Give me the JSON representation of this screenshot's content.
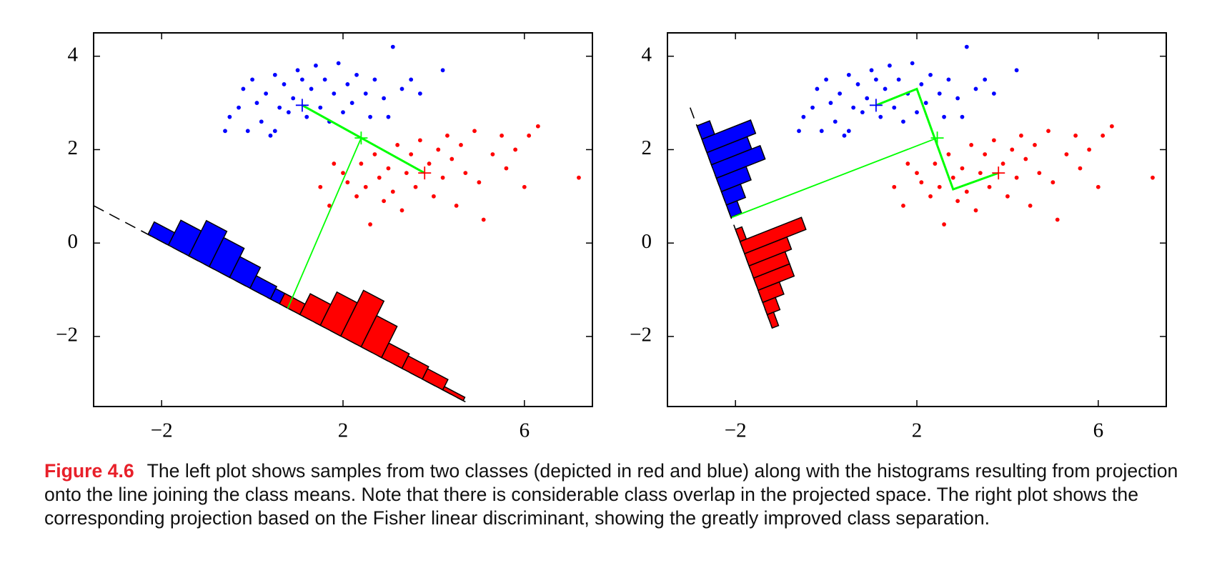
{
  "chart_data": [
    {
      "type": "scatter",
      "xlim": [
        -3.5,
        7.5
      ],
      "ylim": [
        -3.5,
        4.5
      ],
      "xticks": [
        {
          "value": -2,
          "label": "−2"
        },
        2,
        6
      ],
      "yticks": [
        {
          "value": -2,
          "label": "−2"
        },
        0,
        2,
        4
      ],
      "series": [
        {
          "color": "#0000ff",
          "x": [
            -0.5,
            -0.6,
            -0.3,
            -0.2,
            0,
            0.1,
            0.2,
            0.3,
            0.4,
            0.5,
            0.6,
            0.7,
            0.8,
            0.9,
            1.0,
            1.2,
            1.3,
            1.4,
            1.5,
            1.6,
            1.7,
            1.8,
            1.9,
            2.0,
            2.1,
            2.2,
            2.3,
            2.5,
            2.6,
            2.7,
            2.9,
            3.0,
            3.1,
            3.3,
            3.5,
            3.7,
            4.2,
            -0.1,
            0.5,
            1.1
          ],
          "y": [
            2.7,
            2.4,
            2.9,
            3.3,
            3.5,
            3.0,
            2.6,
            3.2,
            2.3,
            3.6,
            2.9,
            3.4,
            2.8,
            3.1,
            3.7,
            2.7,
            3.3,
            3.8,
            2.9,
            3.5,
            2.6,
            3.2,
            3.85,
            2.8,
            3.4,
            3.0,
            3.6,
            3.2,
            2.7,
            3.5,
            3.1,
            2.7,
            4.2,
            3.3,
            3.5,
            3.2,
            3.7,
            2.4,
            2.4,
            3.5
          ]
        },
        {
          "color": "#ff0000",
          "x": [
            1.5,
            1.7,
            1.8,
            2.0,
            2.1,
            2.3,
            2.4,
            2.5,
            2.6,
            2.7,
            2.8,
            2.9,
            3.0,
            3.1,
            3.2,
            3.3,
            3.4,
            3.5,
            3.6,
            3.7,
            3.9,
            4.0,
            4.1,
            4.2,
            4.3,
            4.4,
            4.5,
            4.6,
            4.7,
            4.9,
            5.0,
            5.1,
            5.3,
            5.5,
            5.6,
            5.8,
            6.0,
            6.1,
            6.3,
            7.2
          ],
          "y": [
            1.2,
            0.8,
            1.7,
            1.5,
            1.3,
            1.0,
            1.7,
            1.2,
            0.4,
            1.9,
            1.4,
            0.9,
            1.6,
            1.1,
            2.1,
            0.7,
            1.5,
            1.9,
            1.2,
            2.2,
            1.7,
            1.0,
            2.0,
            1.4,
            2.3,
            1.8,
            0.8,
            2.1,
            1.5,
            2.4,
            1.3,
            0.5,
            1.9,
            2.3,
            1.6,
            2.0,
            1.2,
            2.3,
            2.5,
            1.4
          ]
        }
      ],
      "projection": {
        "color": "#000000",
        "x": [
          -3.5,
          4.7
        ],
        "y": [
          0.8,
          -3.4
        ]
      },
      "histograms": [
        {
          "color": "#0000ff",
          "bins": [
            -2.3,
            -1.85,
            -1.4,
            -0.95,
            -0.5,
            -0.05,
            0.4,
            0.85,
            1.3
          ],
          "counts": [
            0.3,
            0.6,
            0.85,
            0.7,
            0.5,
            0.3,
            0.25,
            0.2
          ]
        },
        {
          "color": "#ff0000",
          "bins": [
            0.6,
            1.05,
            1.5,
            1.95,
            2.4,
            2.85,
            3.3,
            3.75,
            4.2,
            4.65
          ],
          "counts": [
            0.25,
            0.5,
            0.8,
            1.1,
            0.75,
            0.35,
            0.3,
            0.25,
            0.08
          ]
        }
      ],
      "lines": [
        {
          "color": "#00ff00",
          "x": [
            1.1,
            3.8
          ],
          "y": [
            2.95,
            1.5
          ]
        },
        {
          "color": "#00ff00",
          "x": [
            2.4,
            0.78
          ],
          "y": [
            2.25,
            -1.4
          ]
        }
      ],
      "means": {
        "colors": [
          "#0000ff",
          "#ff0000",
          "#00ff00"
        ],
        "x": [
          1.1,
          3.8,
          2.4
        ],
        "y": [
          2.95,
          1.5,
          2.25
        ]
      }
    },
    {
      "type": "scatter",
      "xlim": [
        -3.5,
        7.5
      ],
      "ylim": [
        -3.5,
        4.5
      ],
      "xticks": [
        {
          "value": -2,
          "label": "−2"
        },
        2,
        6
      ],
      "yticks": [
        {
          "value": -2,
          "label": "−2"
        },
        0,
        2,
        4
      ],
      "series": [
        {
          "color": "#0000ff",
          "x": [
            -0.5,
            -0.6,
            -0.3,
            -0.2,
            0,
            0.1,
            0.2,
            0.3,
            0.4,
            0.5,
            0.6,
            0.7,
            0.8,
            0.9,
            1.0,
            1.2,
            1.3,
            1.4,
            1.5,
            1.6,
            1.7,
            1.8,
            1.9,
            2.0,
            2.1,
            2.2,
            2.3,
            2.5,
            2.6,
            2.7,
            2.9,
            3.0,
            3.1,
            3.3,
            3.5,
            3.7,
            4.2,
            -0.1,
            0.5,
            1.1
          ],
          "y": [
            2.7,
            2.4,
            2.9,
            3.3,
            3.5,
            3.0,
            2.6,
            3.2,
            2.3,
            3.6,
            2.9,
            3.4,
            2.8,
            3.1,
            3.7,
            2.7,
            3.3,
            3.8,
            2.9,
            3.5,
            2.6,
            3.2,
            3.85,
            2.8,
            3.4,
            3.0,
            3.6,
            3.2,
            2.7,
            3.5,
            3.1,
            2.7,
            4.2,
            3.3,
            3.5,
            3.2,
            3.7,
            2.4,
            2.4,
            3.5
          ]
        },
        {
          "color": "#ff0000",
          "x": [
            1.5,
            1.7,
            1.8,
            2.0,
            2.1,
            2.3,
            2.4,
            2.5,
            2.6,
            2.7,
            2.8,
            2.9,
            3.0,
            3.1,
            3.2,
            3.3,
            3.4,
            3.5,
            3.6,
            3.7,
            3.9,
            4.0,
            4.1,
            4.2,
            4.3,
            4.4,
            4.5,
            4.6,
            4.7,
            4.9,
            5.0,
            5.1,
            5.3,
            5.5,
            5.6,
            5.8,
            6.0,
            6.1,
            6.3,
            7.2
          ],
          "y": [
            1.2,
            0.8,
            1.7,
            1.5,
            1.3,
            1.0,
            1.7,
            1.2,
            0.4,
            1.9,
            1.4,
            0.9,
            1.6,
            1.1,
            2.1,
            0.7,
            1.5,
            1.9,
            1.2,
            2.2,
            1.7,
            1.0,
            2.0,
            1.4,
            2.3,
            1.8,
            0.8,
            2.1,
            1.5,
            2.4,
            1.3,
            0.5,
            1.9,
            2.3,
            1.6,
            2.0,
            1.2,
            2.3,
            2.5,
            1.4
          ]
        }
      ],
      "projection": {
        "color": "#000000",
        "x": [
          -3.0,
          -1.19
        ],
        "y": [
          2.9,
          -1.82
        ]
      },
      "histograms": [
        {
          "color": "#0000ff",
          "bins": [
            -2.85,
            -2.74,
            -2.63,
            -2.53,
            -2.42,
            -2.31,
            -2.2,
            -2.1
          ],
          "counts": [
            0.3,
            1.15,
            0.95,
            1.15,
            0.7,
            0.45,
            0.25
          ]
        },
        {
          "color": "#ff0000",
          "bins": [
            -2.0,
            -1.9,
            -1.8,
            -1.7,
            -1.6,
            -1.5,
            -1.4,
            -1.3,
            -1.19
          ],
          "counts": [
            0.15,
            1.45,
            1.0,
            0.85,
            0.85,
            0.5,
            0.3,
            0.15
          ]
        }
      ],
      "lines": [
        {
          "color": "#00ff00",
          "x": [
            1.1,
            2.0,
            2.8,
            3.8
          ],
          "y": [
            2.95,
            3.3,
            1.15,
            1.5
          ]
        },
        {
          "color": "#00ff00",
          "x": [
            2.45,
            -2.08
          ],
          "y": [
            2.25,
            0.55
          ]
        }
      ],
      "means": {
        "colors": [
          "#0000ff",
          "#ff0000",
          "#00ff00"
        ],
        "x": [
          1.1,
          3.8,
          2.45
        ],
        "y": [
          2.95,
          1.5,
          2.25
        ]
      }
    }
  ],
  "caption": {
    "label": "Figure 4.6",
    "text": "The left plot shows samples from two classes (depicted in red and blue) along with the histograms resulting from projection onto the line joining the class means. Note that there is considerable class overlap in the projected space. The right plot shows the corresponding projection based on the Fisher linear discriminant, showing the greatly improved class separation."
  }
}
